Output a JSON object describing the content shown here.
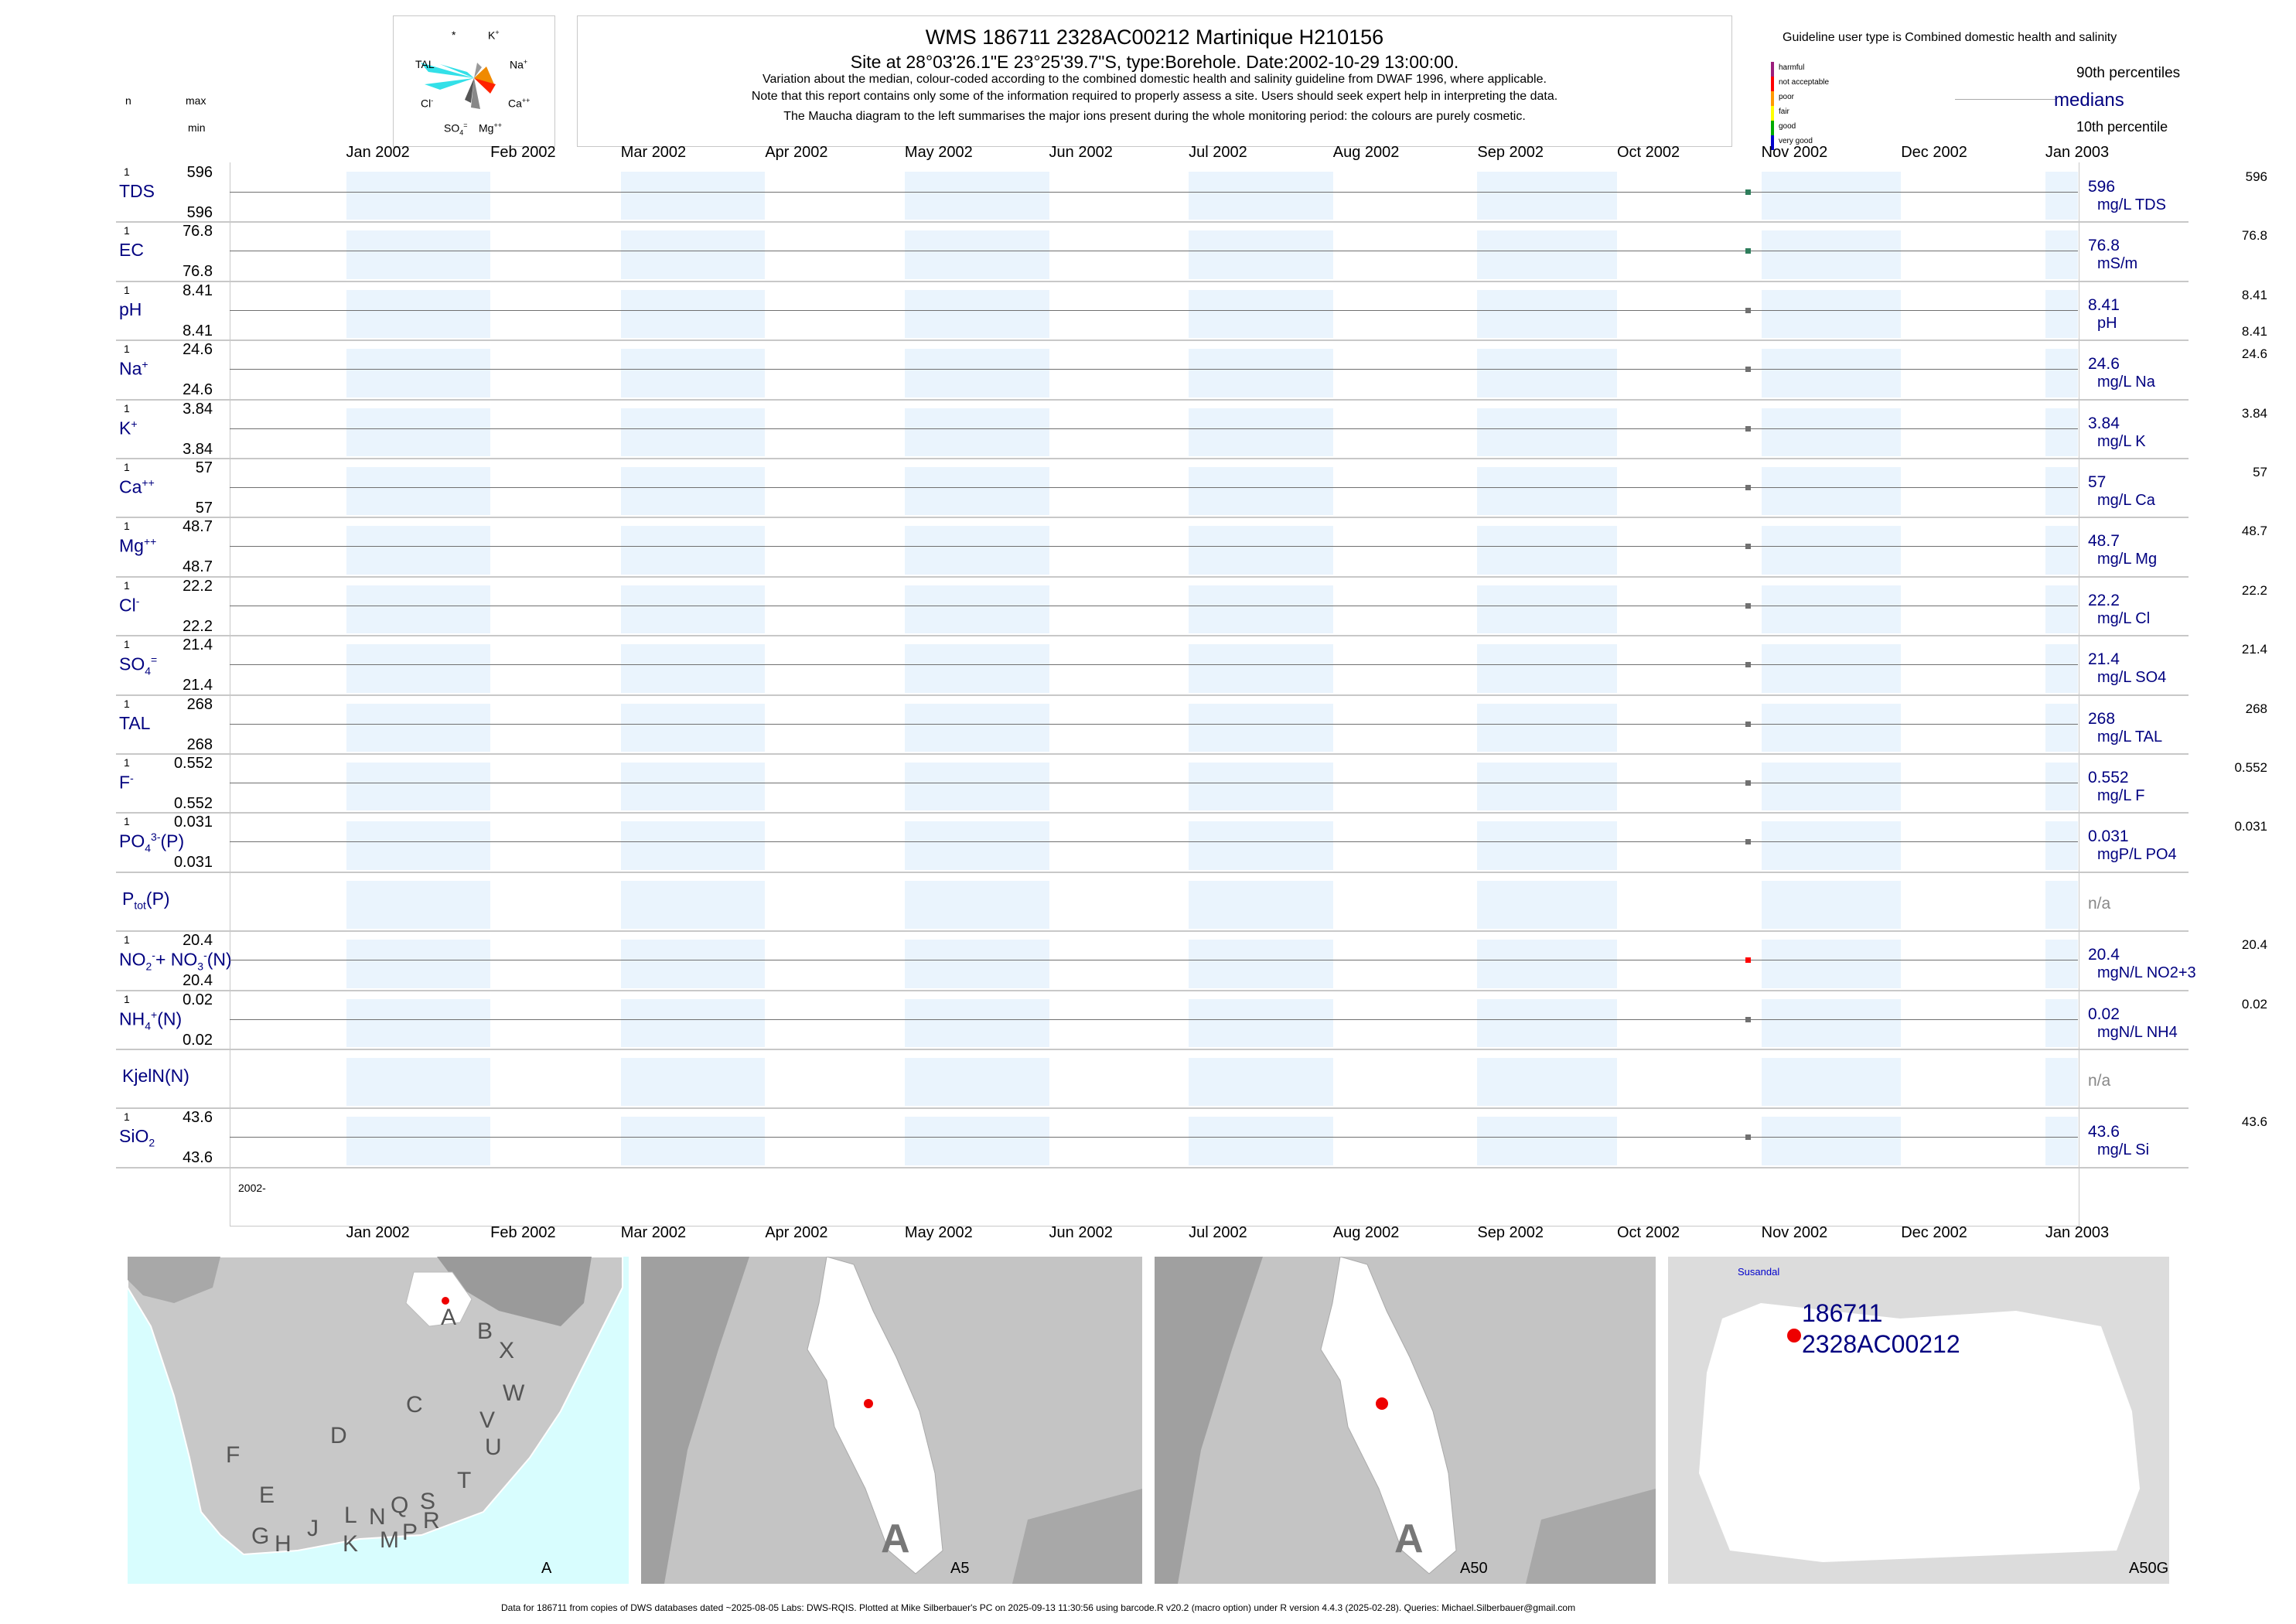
{
  "header": {
    "title": "WMS 186711 2328AC00212 Martinique H210156",
    "subtitle": "Site at 28°03'26.1\"E 23°25'39.7\"S, type:Borehole. Date:2002-10-29 13:00:00.",
    "note1": "Variation about the median,  colour-coded according to the combined domestic health and salinity guideline from DWAF 1996, where applicable.",
    "note2": "Note that this report contains only some of the information required to properly assess a site. Users should seek expert help in interpreting the data.",
    "note3": "The Maucha diagram to the left summarises the major ions present during the whole monitoring period: the colours are purely cosmetic."
  },
  "maucha": {
    "labels": [
      "*",
      "K",
      "+",
      "TAL",
      "Na",
      "+",
      "Cl",
      "-",
      "Ca",
      "++",
      "SO",
      "4",
      "=",
      "Mg",
      "++"
    ]
  },
  "legend": {
    "guideline_title": "Guideline user type is Combined domestic health and salinity",
    "classes": [
      {
        "label": "harmful",
        "color": "#9b1d7c"
      },
      {
        "label": "not acceptable",
        "color": "#ff0000"
      },
      {
        "label": "poor",
        "color": "#ff9900"
      },
      {
        "label": "fair",
        "color": "#ffff00"
      },
      {
        "label": "good",
        "color": "#00aa00"
      },
      {
        "label": "very good",
        "color": "#0000cc"
      }
    ],
    "p90": "90th percentiles",
    "medians": "medians",
    "p10": "10th percentile"
  },
  "left_header": {
    "n": "n",
    "max": "max",
    "min": "min"
  },
  "chart_data": {
    "type": "scatter",
    "x_range": [
      "2001-12-07",
      "2003-01-08"
    ],
    "months": [
      "Jan 2002",
      "Feb 2002",
      "Mar 2002",
      "Apr 2002",
      "May 2002",
      "Jun 2002",
      "Jul 2002",
      "Aug 2002",
      "Sep 2002",
      "Oct 2002",
      "Nov 2002",
      "Dec 2002",
      "Jan 2003"
    ],
    "year_label": "2002-",
    "sample_date": "2002-10-29",
    "parameters": [
      {
        "name": "TDS",
        "sup": "",
        "sub": "",
        "n": "1",
        "max": "596",
        "min": "596",
        "value": "596",
        "unit": "mg/L TDS",
        "p90": "596",
        "p10": "",
        "color": "#2e7d5b"
      },
      {
        "name": "EC",
        "sup": "",
        "sub": "",
        "n": "1",
        "max": "76.8",
        "min": "76.8",
        "value": "76.8",
        "unit": "mS/m",
        "p90": "76.8",
        "p10": "",
        "color": "#2e7d5b"
      },
      {
        "name": "pH",
        "sup": "",
        "sub": "",
        "n": "1",
        "max": "8.41",
        "min": "8.41",
        "value": "8.41",
        "unit": "pH",
        "p90": "8.41",
        "p10": "8.41",
        "color": "#707070"
      },
      {
        "name": "Na",
        "sup": "+",
        "sub": "",
        "n": "1",
        "max": "24.6",
        "min": "24.6",
        "value": "24.6",
        "unit": "mg/L Na",
        "p90": "24.6",
        "p10": "",
        "color": "#707070"
      },
      {
        "name": "K",
        "sup": "+",
        "sub": "",
        "n": "1",
        "max": "3.84",
        "min": "3.84",
        "value": "3.84",
        "unit": "mg/L K",
        "p90": "3.84",
        "p10": "",
        "color": "#707070"
      },
      {
        "name": "Ca",
        "sup": "++",
        "sub": "",
        "n": "1",
        "max": "57",
        "min": "57",
        "value": "57",
        "unit": "mg/L Ca",
        "p90": "57",
        "p10": "",
        "color": "#707070"
      },
      {
        "name": "Mg",
        "sup": "++",
        "sub": "",
        "n": "1",
        "max": "48.7",
        "min": "48.7",
        "value": "48.7",
        "unit": "mg/L Mg",
        "p90": "48.7",
        "p10": "",
        "color": "#707070"
      },
      {
        "name": "Cl",
        "sup": "-",
        "sub": "",
        "n": "1",
        "max": "22.2",
        "min": "22.2",
        "value": "22.2",
        "unit": "mg/L Cl",
        "p90": "22.2",
        "p10": "",
        "color": "#707070"
      },
      {
        "name": "SO",
        "sup": "=",
        "sub": "4",
        "n": "1",
        "max": "21.4",
        "min": "21.4",
        "value": "21.4",
        "unit": "mg/L SO4",
        "p90": "21.4",
        "p10": "",
        "color": "#707070"
      },
      {
        "name": "TAL",
        "sup": "",
        "sub": "",
        "n": "1",
        "max": "268",
        "min": "268",
        "value": "268",
        "unit": "mg/L TAL",
        "p90": "268",
        "p10": "",
        "color": "#707070"
      },
      {
        "name": "F",
        "sup": "-",
        "sub": "",
        "n": "1",
        "max": "0.552",
        "min": "0.552",
        "value": "0.552",
        "unit": "mg/L F",
        "p90": "0.552",
        "p10": "",
        "color": "#707070"
      },
      {
        "name": "PO",
        "sup": "3-",
        "sub": "4",
        "suffix": "(P)",
        "n": "1",
        "max": "0.031",
        "min": "0.031",
        "value": "0.031",
        "unit": "mgP/L PO4",
        "p90": "0.031",
        "p10": "",
        "color": "#707070"
      },
      {
        "name": "P",
        "sup": "",
        "sub": "tot",
        "suffix": "(P)",
        "n": "",
        "max": "",
        "min": "",
        "value": "n/a",
        "unit": "",
        "p90": "",
        "p10": "",
        "color": ""
      },
      {
        "name": "NO",
        "sup": "-",
        "sub": "2",
        "suffix": "+ NO",
        "sup2": "-",
        "sub2": "3",
        "suffix2": "(N)",
        "n": "1",
        "max": "20.4",
        "min": "20.4",
        "value": "20.4",
        "unit": "mgN/L NO2+3",
        "p90": "20.4",
        "p10": "",
        "color": "#ff0000"
      },
      {
        "name": "NH",
        "sup": "+",
        "sub": "4",
        "suffix": "(N)",
        "n": "1",
        "max": "0.02",
        "min": "0.02",
        "value": "0.02",
        "unit": "mgN/L NH4",
        "p90": "0.02",
        "p10": "",
        "color": "#707070"
      },
      {
        "name": "KjelN(N)",
        "sup": "",
        "sub": "",
        "n": "",
        "max": "",
        "min": "",
        "value": "n/a",
        "unit": "",
        "p90": "",
        "p10": "",
        "color": ""
      },
      {
        "name": "SiO",
        "sup": "",
        "sub": "2",
        "n": "1",
        "max": "43.6",
        "min": "43.6",
        "value": "43.6",
        "unit": "mg/L Si",
        "p90": "43.6",
        "p10": "",
        "color": "#707070"
      }
    ]
  },
  "maps": {
    "m1": {
      "caption": "A",
      "letters": [
        "A",
        "B",
        "X",
        "W",
        "C",
        "V",
        "U",
        "D",
        "T",
        "F",
        "E",
        "L",
        "N",
        "Q",
        "S",
        "R",
        "G",
        "H",
        "J",
        "K",
        "M",
        "P"
      ]
    },
    "m2": {
      "caption": "A5",
      "big": "A"
    },
    "m3": {
      "caption": "A50",
      "big": "A"
    },
    "m4": {
      "caption": "A50G",
      "town": "Susandal",
      "site1": "186711",
      "site2": "2328AC00212"
    }
  },
  "footer": "Data for 186711 from copies of DWS databases dated ~2025-08-05 Labs: DWS-RQIS. Plotted at Mike Silberbauer's PC on 2025-09-13 11:30:56 using barcode.R v20.2 (macro option) under R version 4.4.3 (2025-02-28). Queries: Michael.Silberbauer@gmail.com"
}
